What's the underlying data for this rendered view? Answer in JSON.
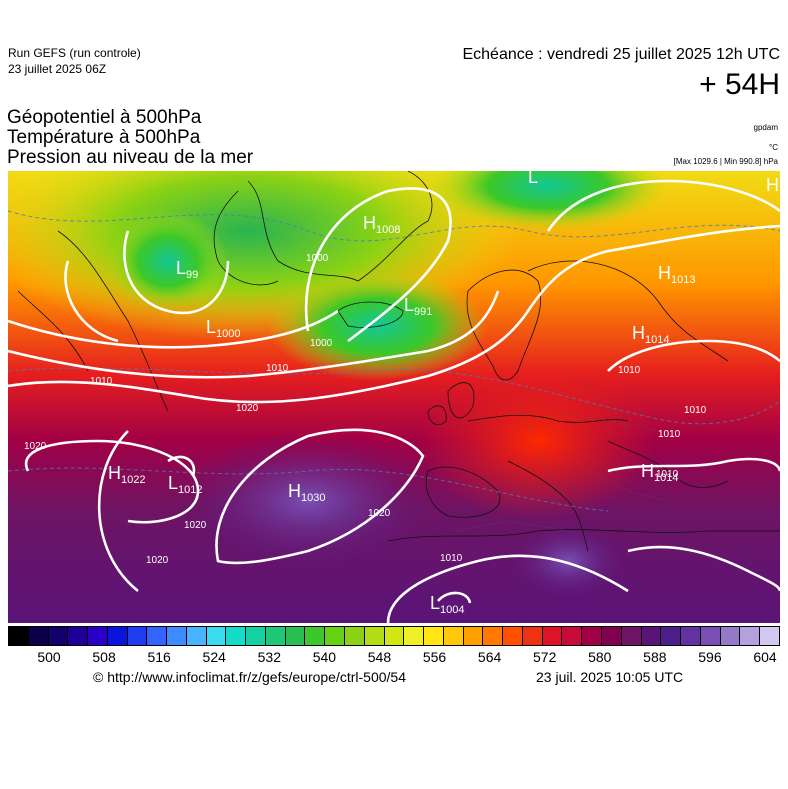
{
  "header": {
    "run_title": "Run GEFS (run controle)",
    "run_date": "23 juillet 2025 06Z",
    "echeance": "Echéance : vendredi 25 juillet 2025 12h UTC",
    "lead": "+ 54H"
  },
  "params": {
    "line1": "Géopotentiel à 500hPa",
    "line2": "Température à 500hPa",
    "line3": "Pression au niveau de la mer"
  },
  "units": {
    "geopotential": "gpdam",
    "temperature": "°C",
    "pressure": "[Max 1029.6 | Min 990.8] hPa"
  },
  "map": {
    "pressure_centers": [
      {
        "type": "H",
        "value": "1008"
      },
      {
        "type": "L",
        "value": "99"
      },
      {
        "type": "L",
        "value": "991"
      },
      {
        "type": "L",
        "value": "1000"
      },
      {
        "type": "H",
        "value": "1013"
      },
      {
        "type": "H",
        "value": "1014"
      },
      {
        "type": "H",
        "value": "1022"
      },
      {
        "type": "L",
        "value": "1012"
      },
      {
        "type": "H",
        "value": "1030"
      },
      {
        "type": "H",
        "value": "1014"
      },
      {
        "type": "L",
        "value": "1004"
      },
      {
        "type": "L",
        "value": ""
      },
      {
        "type": "H",
        "value": ""
      }
    ],
    "isobar_labels": [
      "1000",
      "1000",
      "1010",
      "1020",
      "1020",
      "1020",
      "1020",
      "1020",
      "1010",
      "1010",
      "1010",
      "1010",
      "1010",
      "1010"
    ]
  },
  "colorbar": {
    "ticks": [
      "500",
      "508",
      "516",
      "524",
      "532",
      "540",
      "548",
      "556",
      "564",
      "572",
      "580",
      "588",
      "596",
      "604"
    ],
    "colors": [
      "#000000",
      "#0a0047",
      "#14006b",
      "#1e0096",
      "#2800c8",
      "#0a14dc",
      "#1e3cf0",
      "#3264ff",
      "#3c8cff",
      "#46b4ff",
      "#3cdcf0",
      "#14dcc8",
      "#14d2a0",
      "#1ec878",
      "#28be50",
      "#3cc828",
      "#64d214",
      "#8cd214",
      "#b4dc14",
      "#d2e614",
      "#f0f028",
      "#ffe614",
      "#ffc80a",
      "#ffa000",
      "#ff7800",
      "#ff5000",
      "#f03214",
      "#dc1428",
      "#c80a3c",
      "#a00046",
      "#820050",
      "#6e1464",
      "#5a1478",
      "#4b1e8c",
      "#6432a0",
      "#7850b4",
      "#9678c8",
      "#b4a0dc",
      "#d2c8f0"
    ]
  },
  "footer": {
    "copyright": "© http://www.infoclimat.fr/z/gefs/europe/ctrl-500/54",
    "generated": "23 juil. 2025 10:05 UTC"
  }
}
